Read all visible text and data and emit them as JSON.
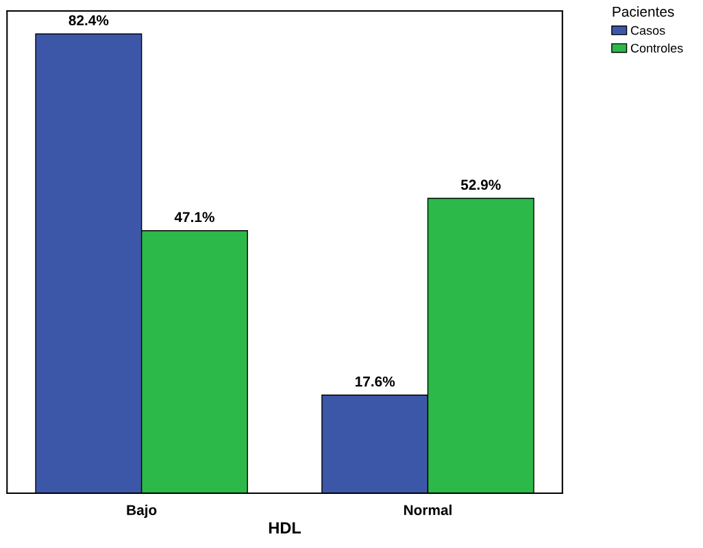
{
  "chart_data": {
    "type": "bar",
    "xlabel": "HDL",
    "legend_title": "Pacientes",
    "categories": [
      "Bajo",
      "Normal"
    ],
    "series": [
      {
        "name": "Casos",
        "color": "#3d57a8",
        "values": [
          82.4,
          17.6
        ],
        "value_labels": [
          "82.4%",
          "17.6%"
        ]
      },
      {
        "name": "Controles",
        "color": "#2db84a",
        "values": [
          47.1,
          52.9
        ],
        "value_labels": [
          "47.1%",
          "52.9%"
        ]
      }
    ],
    "legend": "top right",
    "grid": false,
    "tick_labels": "x"
  }
}
